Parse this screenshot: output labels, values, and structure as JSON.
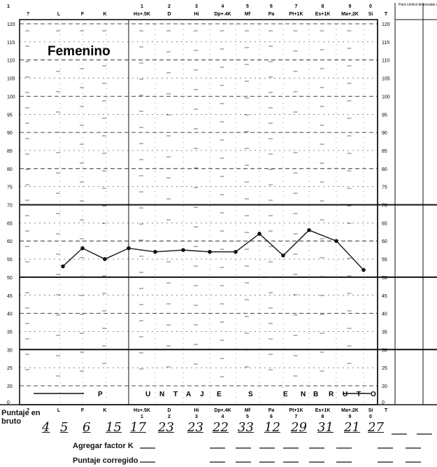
{
  "sheet": {
    "subtitle": "Femenino",
    "side_note": "Para control de escalas adicionales",
    "axis_left_ticks": [
      "120",
      "115",
      "110",
      "105",
      "100",
      "95",
      "90",
      "85",
      "80",
      "75",
      "70",
      "65",
      "60",
      "55",
      "50",
      "45",
      "40",
      "35",
      "30",
      "25",
      "20",
      "0"
    ],
    "banner": "PUNTAJES EN BRUTO"
  },
  "scales": [
    {
      "num": "",
      "abbr": "?"
    },
    {
      "num": "",
      "abbr": "L"
    },
    {
      "num": "",
      "abbr": "F"
    },
    {
      "num": "",
      "abbr": "K"
    },
    {
      "num": "1",
      "abbr": "Hs+.5K"
    },
    {
      "num": "2",
      "abbr": "D"
    },
    {
      "num": "3",
      "abbr": "Hi"
    },
    {
      "num": "4",
      "abbr": "Dp+.4K"
    },
    {
      "num": "5",
      "abbr": "Mf"
    },
    {
      "num": "6",
      "abbr": "Pa"
    },
    {
      "num": "7",
      "abbr": "Pt+1K"
    },
    {
      "num": "8",
      "abbr": "Es+1K"
    },
    {
      "num": "9",
      "abbr": "Ma+.2K"
    },
    {
      "num": "0",
      "abbr": "Si"
    },
    {
      "num": "",
      "abbr": "T"
    }
  ],
  "rows": {
    "raw_label": "Puntaje en bruto",
    "add_k_label": "Agregar factor K",
    "corrected_label": "Puntaje corregido"
  },
  "raw_scores": [
    "4",
    "5",
    "6",
    "15",
    "17",
    "23",
    "23",
    "22",
    "33",
    "12",
    "29",
    "31",
    "21",
    "27"
  ],
  "chart_data": {
    "type": "line",
    "title": "Femenino",
    "ylim": [
      0,
      120
    ],
    "x": [
      "L",
      "F",
      "K",
      "Hs+.5K",
      "D",
      "Hi",
      "Dp+.4K",
      "Mf",
      "Pa",
      "Pt+1K",
      "Es+1K",
      "Ma+.2K",
      "Si"
    ],
    "series": [
      {
        "values": [
          53,
          58,
          55,
          58,
          57,
          57.5,
          57,
          57,
          62,
          56,
          63,
          60,
          52
        ]
      }
    ],
    "grid": true
  }
}
